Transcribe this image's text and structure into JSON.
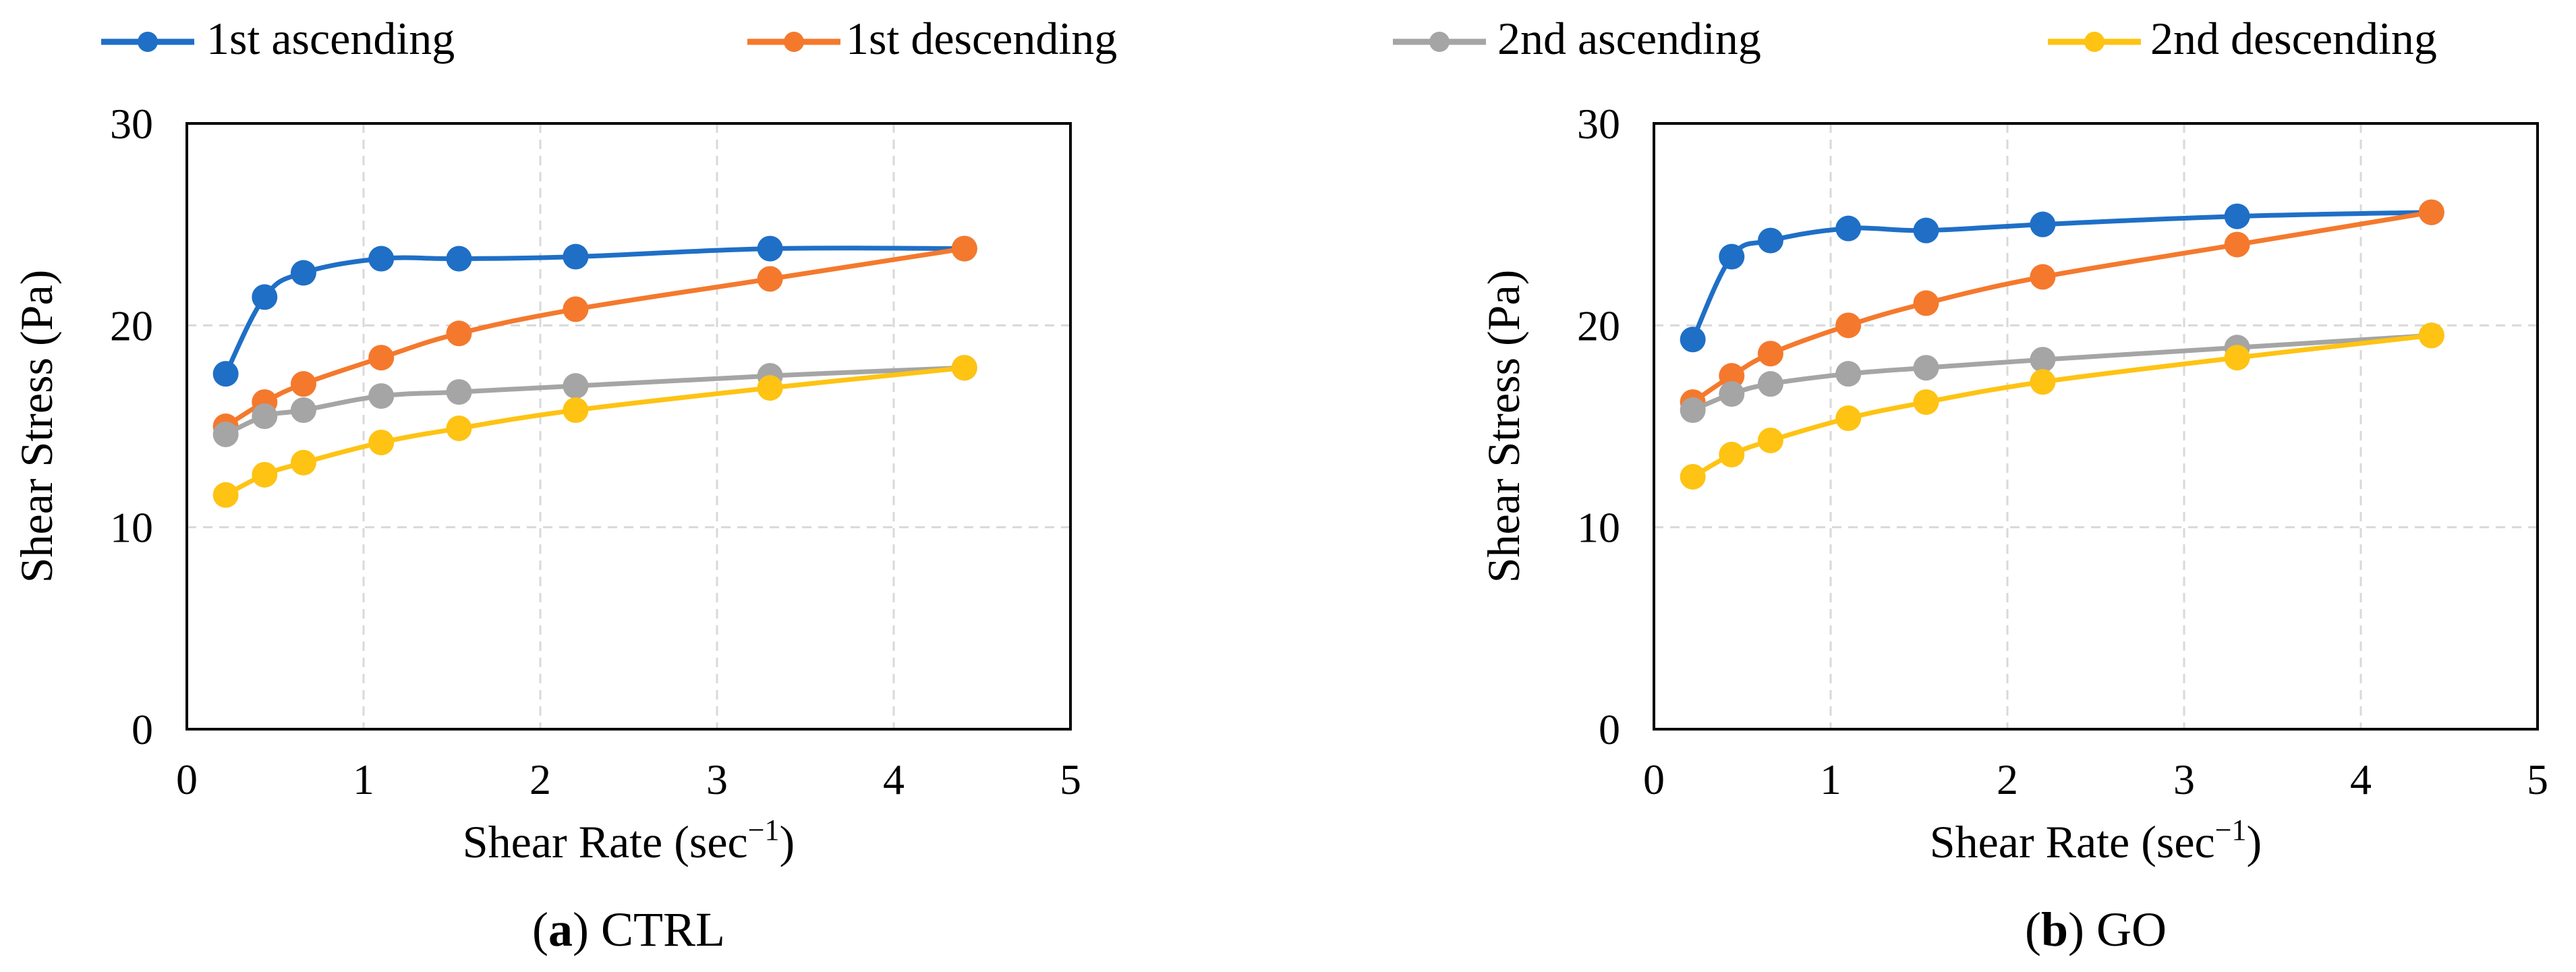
{
  "legend": {
    "position": "top",
    "entries": [
      {
        "label": "1st ascending",
        "color": "#1f6fc6"
      },
      {
        "label": "1st descending",
        "color": "#f4792d"
      },
      {
        "label": "2nd ascending",
        "color": "#a5a5a5"
      },
      {
        "label": "2nd descending",
        "color": "#fec313"
      }
    ]
  },
  "chart_data": [
    {
      "type": "line",
      "caption_letter": "a",
      "caption_text": " CTRL",
      "xlabel": "Shear Rate (sec",
      "xlabel_sup": "−1",
      "xlabel_close": ")",
      "ylabel": "Shear Stress (Pa)",
      "xlim": [
        0,
        5
      ],
      "ylim": [
        0,
        30
      ],
      "xticks": [
        "0",
        "1",
        "2",
        "3",
        "4",
        "5"
      ],
      "yticks": [
        "0",
        "10",
        "20",
        "30"
      ],
      "grid": true,
      "x": [
        0.22,
        0.44,
        0.66,
        1.1,
        1.54,
        2.2,
        3.3,
        4.4
      ],
      "series": [
        {
          "name": "1st ascending",
          "color": "#1f6fc6",
          "values": [
            17.6,
            21.4,
            22.6,
            23.3,
            23.3,
            23.4,
            23.8,
            23.8
          ]
        },
        {
          "name": "1st descending",
          "color": "#f4792d",
          "values": [
            15.0,
            16.2,
            17.1,
            18.4,
            19.6,
            20.8,
            22.3,
            23.8
          ]
        },
        {
          "name": "2nd ascending",
          "color": "#a5a5a5",
          "values": [
            14.6,
            15.5,
            15.8,
            16.5,
            16.7,
            17.0,
            17.5,
            17.9
          ]
        },
        {
          "name": "2nd descending",
          "color": "#fec313",
          "values": [
            11.6,
            12.6,
            13.2,
            14.2,
            14.9,
            15.8,
            16.9,
            17.9
          ]
        }
      ]
    },
    {
      "type": "line",
      "caption_letter": "b",
      "caption_text": " GO",
      "xlabel": "Shear Rate (sec",
      "xlabel_sup": "−1",
      "xlabel_close": ")",
      "ylabel": "Shear Stress (Pa)",
      "xlim": [
        0,
        5
      ],
      "ylim": [
        0,
        30
      ],
      "xticks": [
        "0",
        "1",
        "2",
        "3",
        "4",
        "5"
      ],
      "yticks": [
        "0",
        "10",
        "20",
        "30"
      ],
      "grid": true,
      "x": [
        0.22,
        0.44,
        0.66,
        1.1,
        1.54,
        2.2,
        3.3,
        4.4
      ],
      "series": [
        {
          "name": "1st ascending",
          "color": "#1f6fc6",
          "values": [
            19.3,
            23.4,
            24.2,
            24.8,
            24.7,
            25.0,
            25.4,
            25.6
          ]
        },
        {
          "name": "1st descending",
          "color": "#f4792d",
          "values": [
            16.2,
            17.5,
            18.6,
            20.0,
            21.1,
            22.4,
            24.0,
            25.6
          ]
        },
        {
          "name": "2nd ascending",
          "color": "#a5a5a5",
          "values": [
            15.8,
            16.6,
            17.1,
            17.6,
            17.9,
            18.3,
            18.9,
            19.5
          ]
        },
        {
          "name": "2nd descending",
          "color": "#fec313",
          "values": [
            12.5,
            13.6,
            14.3,
            15.4,
            16.2,
            17.2,
            18.4,
            19.5
          ]
        }
      ]
    }
  ]
}
